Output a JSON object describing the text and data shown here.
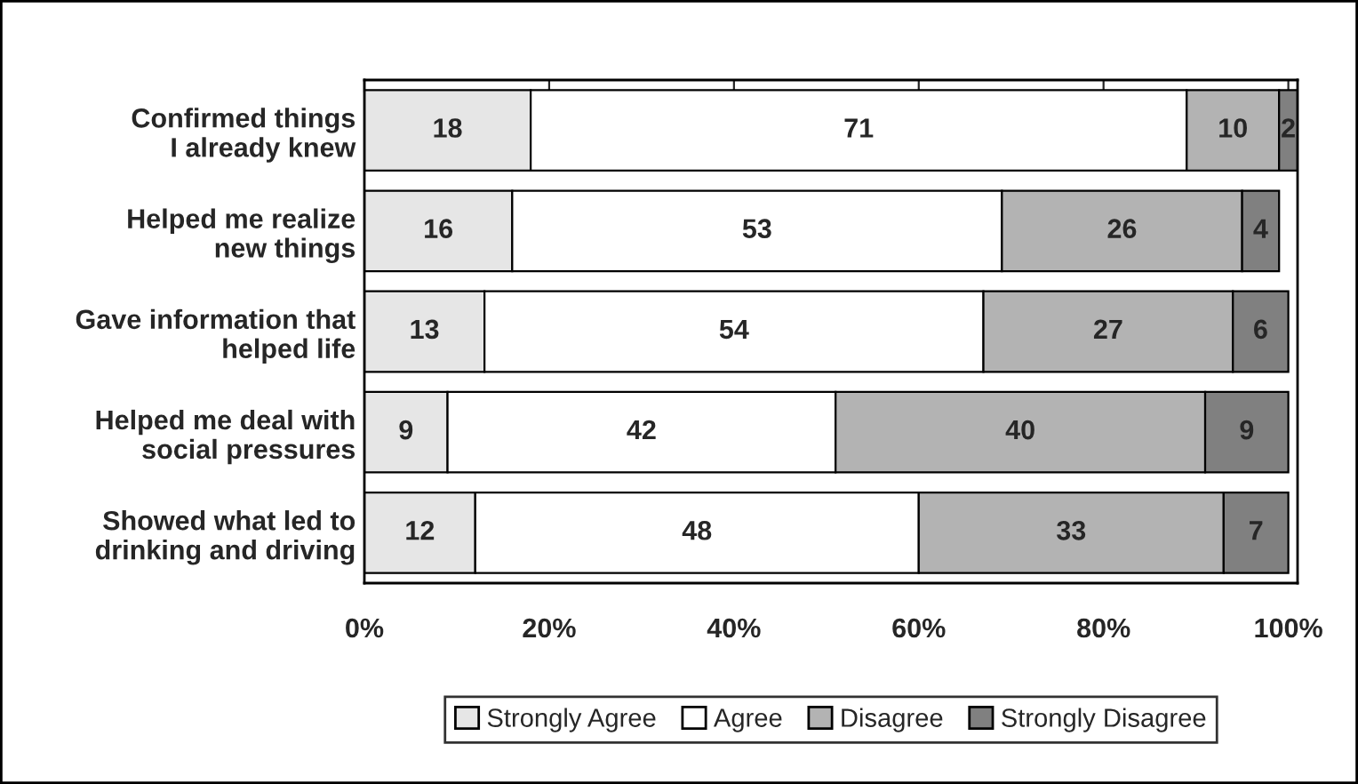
{
  "chart_data": {
    "type": "bar",
    "orientation": "horizontal",
    "stacked": true,
    "categories": [
      "Confirmed things\nI already knew",
      "Helped me realize\nnew things",
      "Gave information that\nhelped life",
      "Helped me deal with\nsocial pressures",
      "Showed what led to\ndrinking and driving"
    ],
    "series": [
      {
        "name": "Strongly Agree",
        "color": "#e6e6e6",
        "values": [
          18,
          16,
          13,
          9,
          12
        ]
      },
      {
        "name": "Agree",
        "color": "#ffffff",
        "values": [
          71,
          53,
          54,
          42,
          48
        ]
      },
      {
        "name": "Disagree",
        "color": "#b3b3b3",
        "values": [
          10,
          26,
          27,
          40,
          33
        ]
      },
      {
        "name": "Strongly Disagree",
        "color": "#808080",
        "values": [
          2,
          4,
          6,
          9,
          7
        ]
      }
    ],
    "xlim": [
      0,
      101
    ],
    "xticks": [
      {
        "value": 0,
        "label": "0%"
      },
      {
        "value": 20,
        "label": "20%"
      },
      {
        "value": 40,
        "label": "40%"
      },
      {
        "value": 60,
        "label": "60%"
      },
      {
        "value": 80,
        "label": "80%"
      },
      {
        "value": 100,
        "label": "100%"
      }
    ],
    "data_labels": true,
    "legend": "bottom",
    "grid": false
  }
}
